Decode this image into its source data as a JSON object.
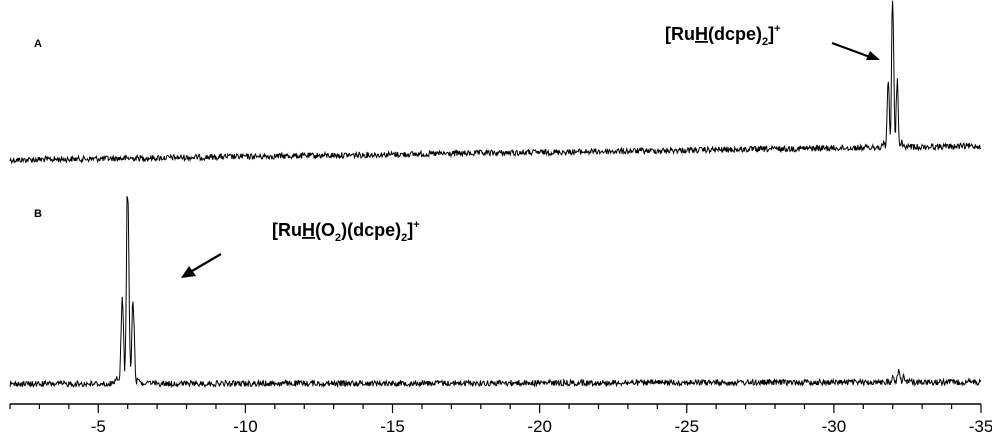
{
  "chart_data": [
    {
      "panel_label": "A",
      "type": "line",
      "xlim": [
        -2,
        -35
      ],
      "baseline_note": "noisy baseline rising slightly toward high field",
      "peaks": [
        {
          "x": -32.0,
          "height": 1.0,
          "width": 0.25
        }
      ],
      "annotation": {
        "text_parts": [
          "[Ru",
          "H",
          "(dcpe)",
          "2",
          "]",
          "+"
        ],
        "target_x": -32.0
      }
    },
    {
      "panel_label": "B",
      "type": "line",
      "xlim": [
        -2,
        -35
      ],
      "peaks": [
        {
          "x": -6.0,
          "height": 1.0,
          "width": 0.3
        },
        {
          "x": -32.2,
          "height": 0.06,
          "width": 0.3
        }
      ],
      "annotation": {
        "text_parts": [
          "[Ru",
          "H",
          "(O",
          "2",
          ")(dcpe)",
          "2",
          "]",
          "+"
        ],
        "target_x": -6.0
      }
    }
  ],
  "x_axis": {
    "ticks": [
      -5,
      -10,
      -15,
      -20,
      -25,
      -30,
      -35
    ],
    "tick_labels": [
      "-5",
      "-10",
      "-15",
      "-20",
      "-25",
      "-30",
      "-35"
    ],
    "minor_step": 1,
    "range": [
      -2,
      -35
    ]
  }
}
